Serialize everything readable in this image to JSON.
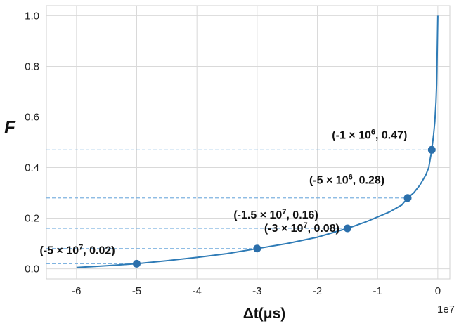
{
  "chart_data": {
    "type": "line",
    "xlabel": "Δt(μs)",
    "ylabel": "F",
    "x_exponent_label": "1e7",
    "xlim": [
      -6.5,
      0.2
    ],
    "ylim": [
      -0.04,
      1.04
    ],
    "x_ticks": [
      -6,
      -5,
      -4,
      -3,
      -2,
      -1,
      0
    ],
    "x_tick_labels": [
      "-6",
      "-5",
      "-4",
      "-3",
      "-2",
      "-1",
      "0"
    ],
    "y_ticks": [
      0.0,
      0.2,
      0.4,
      0.6,
      0.8,
      1.0
    ],
    "y_tick_labels": [
      "0.0",
      "0.2",
      "0.4",
      "0.6",
      "0.8",
      "1.0"
    ],
    "grid": true,
    "color": "#2e7bb6",
    "marker_color": "#2b6fab",
    "reference_line_color": "#7fb3e0",
    "series": [
      {
        "x": [
          -6.0,
          -5.5,
          -5.0,
          -4.5,
          -4.0,
          -3.5,
          -3.0,
          -2.5,
          -2.0,
          -1.5,
          -1.2,
          -1.0,
          -0.8,
          -0.6,
          -0.5,
          -0.4,
          -0.3,
          -0.2,
          -0.15,
          -0.1,
          -0.07,
          -0.05,
          -0.03,
          -0.02,
          -0.01,
          0.0
        ],
        "y": [
          0.005,
          0.012,
          0.02,
          0.032,
          0.045,
          0.06,
          0.08,
          0.1,
          0.125,
          0.16,
          0.185,
          0.205,
          0.225,
          0.252,
          0.28,
          0.3,
          0.33,
          0.37,
          0.4,
          0.47,
          0.53,
          0.58,
          0.66,
          0.73,
          0.85,
          1.0
        ]
      }
    ],
    "highlighted_points": [
      {
        "x": -5.0,
        "y": 0.02,
        "label": "(-5 × 10",
        "exp": "7",
        "tail": ", 0.02)"
      },
      {
        "x": -3.0,
        "y": 0.08,
        "label": "(-3 × 10",
        "exp": "7",
        "tail": ", 0.08)"
      },
      {
        "x": -1.5,
        "y": 0.16,
        "label": "(-1.5 × 10",
        "exp": "7",
        "tail": ", 0.16)"
      },
      {
        "x": -0.5,
        "y": 0.28,
        "label": "(-5 × 10",
        "exp": "6",
        "tail": ", 0.28)"
      },
      {
        "x": -0.1,
        "y": 0.47,
        "label": "(-1 × 10",
        "exp": "6",
        "tail": ", 0.47)"
      }
    ]
  }
}
